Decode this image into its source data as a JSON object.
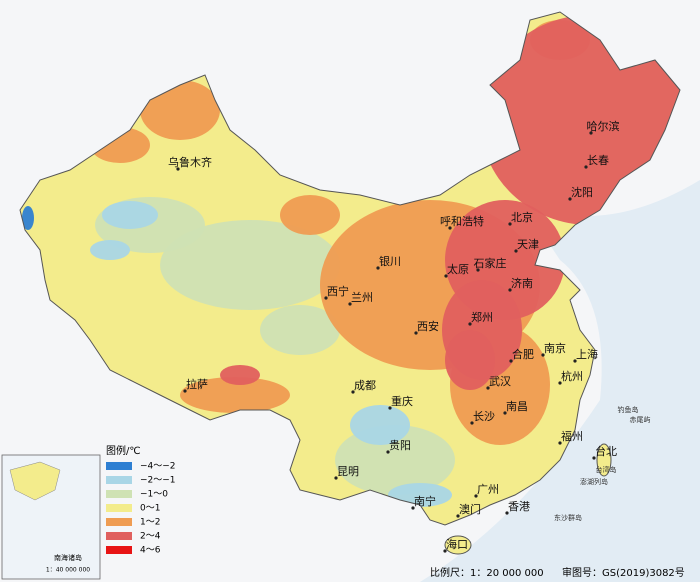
{
  "legend": {
    "title": "图例/℃",
    "items": [
      {
        "label": "−4～−2",
        "color": "#2e7fd2"
      },
      {
        "label": "−2～−1",
        "color": "#a9d6e6"
      },
      {
        "label": "−1～0",
        "color": "#cfe2b4"
      },
      {
        "label": "0～1",
        "color": "#f3ec8c"
      },
      {
        "label": "1～2",
        "color": "#ef9c52"
      },
      {
        "label": "2～4",
        "color": "#e0605e"
      },
      {
        "label": "4～6",
        "color": "#e81414"
      }
    ]
  },
  "cities": [
    "乌鲁木齐",
    "拉萨",
    "西宁",
    "兰州",
    "银川",
    "呼和浩特",
    "北京",
    "天津",
    "石家庄",
    "太原",
    "济南",
    "郑州",
    "西安",
    "成都",
    "重庆",
    "贵阳",
    "昆明",
    "南宁",
    "广州",
    "澳门",
    "香港",
    "海口",
    "长沙",
    "武汉",
    "南昌",
    "合肥",
    "南京",
    "上海",
    "杭州",
    "福州",
    "台北",
    "哈尔滨",
    "长春",
    "沈阳"
  ],
  "places": [
    "钓鱼岛",
    "赤尾屿",
    "台湾岛",
    "澎湖列岛",
    "东沙群岛"
  ],
  "inset": {
    "title": "南海诸岛",
    "scale": "1：40 000 000"
  },
  "footer": {
    "scale": "比例尺：1：20 000 000",
    "review": "审图号：GS(2019)3082号"
  }
}
